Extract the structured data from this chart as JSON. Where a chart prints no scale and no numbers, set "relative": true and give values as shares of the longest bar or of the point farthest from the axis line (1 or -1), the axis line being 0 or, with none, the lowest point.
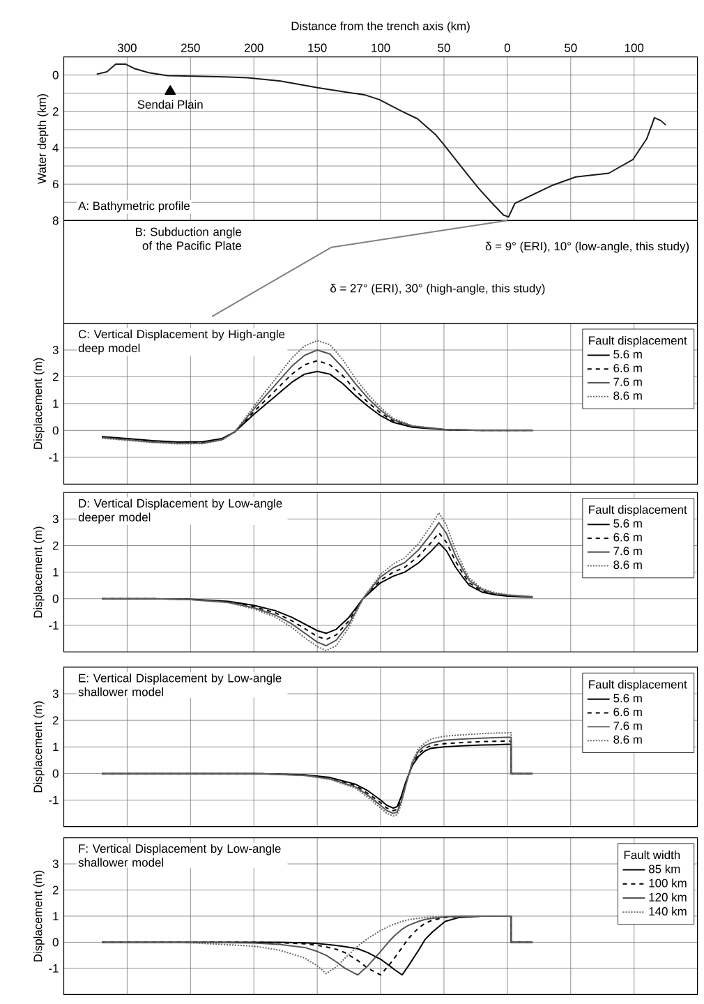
{
  "chart_data": [
    {
      "type": "line",
      "title": "A: Bathymetric profile",
      "xlabel": "Distance from the trench axis (km)",
      "ylabel": "Water depth (km)",
      "xlim": [
        350,
        -150
      ],
      "ylim": [
        8,
        -1
      ],
      "xticks": [
        300,
        250,
        200,
        150,
        100,
        50,
        0,
        {
          "value": -50,
          "label": "50"
        },
        {
          "value": -100,
          "label": "100"
        }
      ],
      "yticks": [
        0,
        {
          "value": 1,
          "label": null
        },
        2,
        {
          "value": 3,
          "label": null
        },
        4,
        {
          "value": 5,
          "label": null
        },
        6,
        {
          "value": 7,
          "label": null
        },
        8
      ],
      "grid": true,
      "series": [
        {
          "type": "scatter",
          "marker": "triangle",
          "color": "#000000",
          "x": [
            266
          ],
          "values": [
            0.9
          ]
        },
        {
          "color": "#1a1a1a",
          "x": [
            324,
            316,
            309,
            301,
            294,
            283,
            268,
            223,
            205,
            179,
            149,
            112,
            101,
            83,
            71,
            57,
            51,
            38,
            23,
            12,
            3,
            -1,
            -6,
            -21,
            -36,
            -54,
            -80,
            -99,
            -110,
            -114,
            -116,
            -121,
            -125
          ],
          "values": [
            -0.05,
            -0.18,
            -0.6,
            -0.6,
            -0.35,
            -0.13,
            0.03,
            0.1,
            0.15,
            0.33,
            0.7,
            1.1,
            1.35,
            2.0,
            2.4,
            3.25,
            3.75,
            4.9,
            6.2,
            7.05,
            7.7,
            7.8,
            7.05,
            6.55,
            6.05,
            5.6,
            5.4,
            4.65,
            3.5,
            2.75,
            2.35,
            2.5,
            2.75
          ]
        }
      ],
      "annotations": [
        {
          "text": "Sendai Plain",
          "x": 266,
          "y": 0.9
        }
      ]
    },
    {
      "type": "line",
      "relative": true,
      "title": "B: Subduction angle of the Pacific Plate",
      "xlim": [
        350,
        -150
      ],
      "tick_labels": false,
      "color": "#808080",
      "x": [
        0,
        139,
        233
      ],
      "values": [
        0,
        -0.28,
        -1
      ],
      "annotations": [
        "δ = 9° (ERI), 10° (low-angle, this study)",
        "δ = 27° (ERI), 30° (high-angle, this study)"
      ]
    },
    {
      "type": "line",
      "title": "C: Vertical Displacement by High-angle deep model",
      "ylabel": "Displacement (m)",
      "xlim": [
        350,
        -150
      ],
      "ylim": [
        -2,
        4
      ],
      "xticks": [
        300,
        250,
        200,
        150,
        100,
        50,
        0,
        -50,
        -100
      ],
      "yticks": [
        -1,
        0,
        1,
        2,
        3
      ],
      "grid": true,
      "tick_labels": "y",
      "legend": "top right",
      "legend_title": "Fault displacement",
      "x": [
        320,
        300,
        280,
        260,
        240,
        225,
        215,
        200,
        185,
        170,
        160,
        150,
        140,
        130,
        120,
        110,
        100,
        90,
        75,
        50,
        20,
        -20
      ],
      "series": [
        {
          "name": "5.6 m",
          "color": "#000000",
          "line_style": "solid",
          "values": [
            -0.23,
            -0.3,
            -0.38,
            -0.43,
            -0.42,
            -0.3,
            -0.05,
            0.6,
            1.2,
            1.8,
            2.1,
            2.2,
            2.1,
            1.75,
            1.3,
            0.9,
            0.55,
            0.3,
            0.12,
            0.03,
            0.0,
            0.0
          ]
        },
        {
          "name": "6.6 m",
          "color": "#000000",
          "line_style": "dashed",
          "values": [
            -0.25,
            -0.33,
            -0.41,
            -0.46,
            -0.45,
            -0.32,
            -0.05,
            0.7,
            1.4,
            2.1,
            2.45,
            2.6,
            2.45,
            2.05,
            1.5,
            1.05,
            0.65,
            0.35,
            0.14,
            0.03,
            0.0,
            0.0
          ]
        },
        {
          "name": "7.6 m",
          "color": "#555555",
          "line_style": "solid",
          "values": [
            -0.27,
            -0.35,
            -0.43,
            -0.48,
            -0.47,
            -0.34,
            -0.05,
            0.8,
            1.6,
            2.4,
            2.8,
            3.0,
            2.85,
            2.35,
            1.75,
            1.2,
            0.75,
            0.4,
            0.16,
            0.04,
            0.0,
            0.0
          ]
        },
        {
          "name": "8.6 m",
          "color": "#666666",
          "line_style": "dotted",
          "values": [
            -0.29,
            -0.37,
            -0.45,
            -0.5,
            -0.49,
            -0.36,
            -0.05,
            0.9,
            1.8,
            2.7,
            3.15,
            3.35,
            3.2,
            2.65,
            1.95,
            1.35,
            0.85,
            0.45,
            0.18,
            0.04,
            0.0,
            0.0
          ]
        }
      ]
    },
    {
      "type": "line",
      "title": "D: Vertical Displacement by Low-angle deeper model",
      "ylabel": "Displacement (m)",
      "xlim": [
        350,
        -150
      ],
      "ylim": [
        -2,
        4
      ],
      "xticks": [
        300,
        250,
        200,
        150,
        100,
        50,
        0,
        -50,
        -100
      ],
      "yticks": [
        -1,
        0,
        1,
        2,
        3
      ],
      "grid": true,
      "tick_labels": "y",
      "legend": "top right",
      "legend_title": "Fault displacement",
      "x": [
        320,
        280,
        250,
        220,
        200,
        183,
        170,
        160,
        150,
        143,
        135,
        125,
        114,
        100,
        90,
        81,
        70,
        60,
        54,
        48,
        41,
        35,
        30,
        20,
        10,
        0,
        -20
      ],
      "series": [
        {
          "name": "5.6 m",
          "color": "#000000",
          "line_style": "solid",
          "values": [
            0,
            0,
            -0.02,
            -0.1,
            -0.25,
            -0.45,
            -0.7,
            -0.95,
            -1.2,
            -1.3,
            -1.15,
            -0.7,
            0,
            0.6,
            0.85,
            1.0,
            1.35,
            1.8,
            2.1,
            1.8,
            1.2,
            0.8,
            0.5,
            0.25,
            0.15,
            0.1,
            0.05
          ]
        },
        {
          "name": "6.6 m",
          "color": "#000000",
          "line_style": "dashed",
          "values": [
            0,
            0,
            -0.02,
            -0.12,
            -0.3,
            -0.53,
            -0.83,
            -1.12,
            -1.42,
            -1.53,
            -1.36,
            -0.83,
            0,
            0.7,
            1.0,
            1.18,
            1.6,
            2.12,
            2.48,
            2.12,
            1.42,
            0.94,
            0.59,
            0.3,
            0.18,
            0.12,
            0.06
          ]
        },
        {
          "name": "7.6 m",
          "color": "#555555",
          "line_style": "solid",
          "values": [
            0,
            0,
            -0.03,
            -0.14,
            -0.34,
            -0.61,
            -0.95,
            -1.29,
            -1.63,
            -1.77,
            -1.56,
            -0.95,
            0,
            0.82,
            1.16,
            1.36,
            1.84,
            2.45,
            2.86,
            2.45,
            1.63,
            1.09,
            0.68,
            0.34,
            0.2,
            0.14,
            0.07
          ]
        },
        {
          "name": "8.6 m",
          "color": "#666666",
          "line_style": "dotted",
          "values": [
            0,
            0,
            -0.03,
            -0.15,
            -0.38,
            -0.69,
            -1.08,
            -1.46,
            -1.8,
            -1.95,
            -1.77,
            -1.08,
            0,
            0.92,
            1.31,
            1.54,
            2.08,
            2.77,
            3.23,
            2.77,
            1.85,
            1.23,
            0.77,
            0.38,
            0.23,
            0.15,
            0.08
          ]
        }
      ]
    },
    {
      "type": "line",
      "title": "E: Vertical Displacement by Low-angle shallower model",
      "ylabel": "Displacement (m)",
      "xlim": [
        350,
        -150
      ],
      "ylim": [
        -2,
        4
      ],
      "xticks": [
        300,
        250,
        200,
        150,
        100,
        50,
        0,
        -50,
        -100
      ],
      "yticks": [
        -1,
        0,
        1,
        2,
        3
      ],
      "grid": true,
      "tick_labels": "y",
      "legend": "top right",
      "legend_title": "Fault displacement",
      "x": [
        320,
        250,
        200,
        160,
        140,
        120,
        110,
        100,
        95,
        90,
        87,
        84,
        80,
        75,
        70,
        65,
        60,
        50,
        40,
        30,
        20,
        10,
        0,
        -3,
        -3,
        -20
      ],
      "series": [
        {
          "name": "5.6 m",
          "color": "#000000",
          "line_style": "solid",
          "values": [
            0,
            0,
            0,
            -0.05,
            -0.15,
            -0.4,
            -0.65,
            -1.0,
            -1.2,
            -1.3,
            -1.25,
            -0.9,
            -0.3,
            0.3,
            0.65,
            0.85,
            0.95,
            1.0,
            1.03,
            1.05,
            1.07,
            1.08,
            1.1,
            1.1,
            0,
            0
          ]
        },
        {
          "name": "6.6 m",
          "color": "#000000",
          "line_style": "dashed",
          "values": [
            0,
            0,
            0,
            -0.06,
            -0.18,
            -0.45,
            -0.75,
            -1.1,
            -1.3,
            -1.4,
            -1.35,
            -1.0,
            -0.35,
            0.35,
            0.75,
            0.95,
            1.05,
            1.12,
            1.15,
            1.18,
            1.2,
            1.21,
            1.22,
            1.22,
            0,
            0
          ]
        },
        {
          "name": "7.6 m",
          "color": "#555555",
          "line_style": "solid",
          "values": [
            0,
            0,
            0,
            -0.07,
            -0.2,
            -0.5,
            -0.82,
            -1.2,
            -1.4,
            -1.5,
            -1.45,
            -1.1,
            -0.4,
            0.4,
            0.85,
            1.05,
            1.15,
            1.25,
            1.28,
            1.31,
            1.33,
            1.35,
            1.36,
            1.36,
            0,
            0
          ]
        },
        {
          "name": "8.6 m",
          "color": "#666666",
          "line_style": "dotted",
          "values": [
            0,
            0,
            0,
            -0.08,
            -0.22,
            -0.55,
            -0.9,
            -1.3,
            -1.5,
            -1.6,
            -1.55,
            -1.2,
            -0.45,
            0.45,
            0.95,
            1.15,
            1.3,
            1.4,
            1.44,
            1.47,
            1.5,
            1.52,
            1.53,
            1.53,
            0,
            0
          ]
        }
      ]
    },
    {
      "type": "line",
      "title": "F: Vertical Displacement by Low-angle shallower model",
      "ylabel": "Displacement (m)",
      "xlim": [
        350,
        -150
      ],
      "ylim": [
        -2,
        4
      ],
      "xticks": [
        300,
        250,
        200,
        150,
        100,
        50,
        0,
        -50,
        -100
      ],
      "yticks": [
        -1,
        0,
        1,
        2,
        3
      ],
      "grid": true,
      "tick_labels": "y",
      "legend": "top right",
      "legend_title": "Fault width",
      "x": [
        320,
        250,
        200,
        180,
        160,
        150,
        143,
        135,
        128,
        118,
        110,
        100,
        93,
        89,
        83,
        78,
        70,
        65,
        59,
        49,
        38,
        20,
        0,
        -3,
        -3,
        -20
      ],
      "series": [
        {
          "name": "85 km",
          "color": "#000000",
          "line_style": "solid",
          "values": [
            0,
            0,
            0,
            0,
            -0.02,
            -0.05,
            -0.08,
            -0.12,
            -0.17,
            -0.25,
            -0.4,
            -0.65,
            -0.9,
            -1.05,
            -1.25,
            -0.9,
            -0.3,
            0.1,
            0.4,
            0.8,
            0.95,
            1.0,
            1.0,
            1.0,
            0,
            0
          ]
        },
        {
          "name": "100 km",
          "color": "#000000",
          "line_style": "dashed",
          "values": [
            0,
            0,
            0,
            -0.02,
            -0.06,
            -0.12,
            -0.18,
            -0.27,
            -0.4,
            -0.7,
            -1.0,
            -1.25,
            -0.85,
            -0.6,
            -0.2,
            0.15,
            0.55,
            0.72,
            0.85,
            0.95,
            0.98,
            1.0,
            1.0,
            1.0,
            0,
            0
          ]
        },
        {
          "name": "120 km",
          "color": "#555555",
          "line_style": "solid",
          "values": [
            0,
            0,
            -0.03,
            -0.08,
            -0.2,
            -0.35,
            -0.5,
            -0.75,
            -1.0,
            -1.25,
            -0.9,
            -0.35,
            0.05,
            0.25,
            0.5,
            0.65,
            0.8,
            0.87,
            0.92,
            0.97,
            0.99,
            1.0,
            1.0,
            1.0,
            0,
            0
          ]
        },
        {
          "name": "140 km",
          "color": "#666666",
          "line_style": "dotted",
          "values": [
            0,
            -0.02,
            -0.15,
            -0.3,
            -0.6,
            -0.9,
            -1.2,
            -0.95,
            -0.6,
            -0.15,
            0.15,
            0.45,
            0.62,
            0.7,
            0.8,
            0.86,
            0.92,
            0.95,
            0.97,
            0.99,
            1.0,
            1.0,
            1.0,
            1.0,
            0,
            0
          ]
        }
      ]
    }
  ]
}
